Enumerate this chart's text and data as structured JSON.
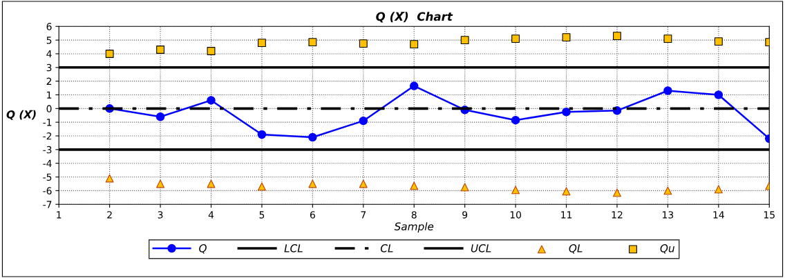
{
  "chart_data": {
    "type": "line",
    "title": "Q (X̄)  Chart",
    "xlabel": "Sample",
    "ylabel": "Q (X̄)",
    "xlim": [
      1,
      15
    ],
    "xticks": [
      1,
      2,
      3,
      4,
      5,
      6,
      7,
      8,
      9,
      10,
      11,
      12,
      13,
      14,
      15
    ],
    "ylim": [
      -7,
      6
    ],
    "yticks": [
      -7,
      -6,
      -5,
      -4,
      -3,
      -2,
      -1,
      0,
      1,
      2,
      3,
      4,
      5,
      6
    ],
    "grid": true,
    "legend": "bottom",
    "series": [
      {
        "name": "Q",
        "color": "#0000ff",
        "marker": "circle",
        "line_style": "solid",
        "x": [
          2,
          3,
          4,
          5,
          6,
          7,
          8,
          9,
          10,
          11,
          12,
          13,
          14,
          15
        ],
        "values": [
          0,
          -0.6,
          0.6,
          -1.9,
          -2.1,
          -0.9,
          1.65,
          -0.1,
          -0.85,
          -0.25,
          -0.15,
          1.3,
          1.0,
          -2.2
        ]
      },
      {
        "name": "LCL",
        "color": "#000000",
        "marker": "none",
        "line_style": "solid",
        "x": [
          1,
          15
        ],
        "values": [
          -3,
          -3
        ]
      },
      {
        "name": "CL",
        "color": "#000000",
        "marker": "none",
        "line_style": "dashed",
        "x": [
          1,
          15
        ],
        "values": [
          0,
          0
        ]
      },
      {
        "name": "UCL",
        "color": "#000000",
        "marker": "none",
        "line_style": "solid",
        "x": [
          1,
          15
        ],
        "values": [
          3,
          3
        ]
      },
      {
        "name": "QL",
        "type": "scatter",
        "color": "#ffc000",
        "marker": "triangle",
        "x": [
          2,
          3,
          4,
          5,
          6,
          7,
          8,
          9,
          10,
          11,
          12,
          13,
          14,
          15
        ],
        "values": [
          -5.1,
          -5.5,
          -5.5,
          -5.7,
          -5.5,
          -5.5,
          -5.65,
          -5.75,
          -5.95,
          -6.05,
          -6.15,
          -6.0,
          -5.9,
          -5.65
        ]
      },
      {
        "name": "Qu",
        "type": "scatter",
        "color": "#ffc000",
        "marker": "square",
        "x": [
          2,
          3,
          4,
          5,
          6,
          7,
          8,
          9,
          10,
          11,
          12,
          13,
          14,
          15
        ],
        "values": [
          4.0,
          4.3,
          4.2,
          4.8,
          4.85,
          4.75,
          4.7,
          5.0,
          5.1,
          5.2,
          5.3,
          5.1,
          4.9,
          4.85
        ]
      }
    ]
  }
}
